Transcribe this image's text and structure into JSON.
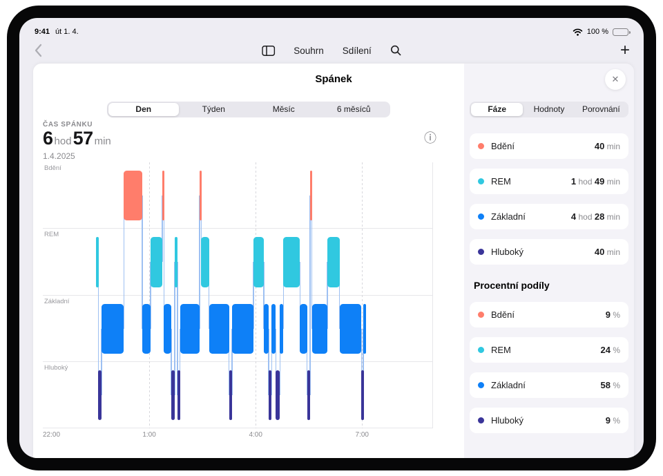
{
  "status_bar": {
    "time": "9:41",
    "date": "út 1. 4.",
    "battery": "100 %"
  },
  "nav": {
    "summary": "Souhrn",
    "sharing": "Sdílení"
  },
  "sheet": {
    "title": "Spánek"
  },
  "main": {
    "range_tabs": {
      "options": [
        "Den",
        "Týden",
        "Měsíc",
        "6 měsíců"
      ],
      "selected": 0
    },
    "metric": {
      "label": "ČAS SPÁNKU",
      "hours": "6",
      "hours_unit": "hod",
      "minutes": "57",
      "minutes_unit": "min",
      "date": "1.4.2025"
    },
    "info_icon": "ⓘ"
  },
  "panel": {
    "tabs": {
      "options": [
        "Fáze",
        "Hodnoty",
        "Porovnání"
      ],
      "selected": 0
    },
    "close_icon": "✕",
    "phases": [
      {
        "name": "Bdění",
        "color": "#FF7D6B",
        "value": [
          {
            "t": "40",
            "b": true
          },
          {
            "t": " min",
            "b": false
          }
        ]
      },
      {
        "name": "REM",
        "color": "#30C8E0",
        "value": [
          {
            "t": "1",
            "b": true
          },
          {
            "t": " hod ",
            "b": false
          },
          {
            "t": "49",
            "b": true
          },
          {
            "t": " min",
            "b": false
          }
        ]
      },
      {
        "name": "Základní",
        "color": "#0E80F7",
        "value": [
          {
            "t": "4",
            "b": true
          },
          {
            "t": " hod ",
            "b": false
          },
          {
            "t": "28",
            "b": true
          },
          {
            "t": " min",
            "b": false
          }
        ]
      },
      {
        "name": "Hluboký",
        "color": "#3A3599",
        "value": [
          {
            "t": "40",
            "b": true
          },
          {
            "t": " min",
            "b": false
          }
        ]
      }
    ],
    "percent_title": "Procentní podíly",
    "percentages": [
      {
        "name": "Bdění",
        "color": "#FF7D6B",
        "value": [
          {
            "t": "9",
            "b": true
          },
          {
            "t": " %",
            "b": false
          }
        ]
      },
      {
        "name": "REM",
        "color": "#30C8E0",
        "value": [
          {
            "t": "24",
            "b": true
          },
          {
            "t": " %",
            "b": false
          }
        ]
      },
      {
        "name": "Základní",
        "color": "#0E80F7",
        "value": [
          {
            "t": "58",
            "b": true
          },
          {
            "t": " %",
            "b": false
          }
        ]
      },
      {
        "name": "Hluboký",
        "color": "#3A3599",
        "value": [
          {
            "t": "9",
            "b": true
          },
          {
            "t": " %",
            "b": false
          }
        ]
      }
    ]
  },
  "chart_data": {
    "type": "hypnogram-timeline",
    "title": "Spánek",
    "date": "1.4.2025",
    "sleep_duration": {
      "hours": 6,
      "minutes": 57
    },
    "x_domain_note": "minutes after 22:00",
    "x_domain": [
      0,
      660
    ],
    "x_ticks": [
      {
        "m": 0,
        "label": "22:00"
      },
      {
        "m": 180,
        "label": "1:00"
      },
      {
        "m": 360,
        "label": "4:00"
      },
      {
        "m": 540,
        "label": "7:00"
      }
    ],
    "lanes": [
      {
        "key": "awake",
        "label": "Bdění",
        "color": "#FF7D6B"
      },
      {
        "key": "rem",
        "label": "REM",
        "color": "#30C8E0"
      },
      {
        "key": "core",
        "label": "Základní",
        "color": "#0E80F7"
      },
      {
        "key": "deep",
        "label": "Hluboký",
        "color": "#3A3599"
      }
    ],
    "stage_totals": {
      "Bdění": "40 min",
      "REM": "1 hod 49 min",
      "Základní": "4 hod 28 min",
      "Hluboký": "40 min"
    },
    "stage_percentages": {
      "Bdění": "9 %",
      "REM": "24 %",
      "Základní": "58 %",
      "Hluboký": "9 %"
    },
    "segments": [
      [
        90,
        4,
        "rem"
      ],
      [
        94,
        5,
        "deep"
      ],
      [
        99,
        38,
        "core"
      ],
      [
        137,
        31,
        "awake"
      ],
      [
        168,
        14,
        "core"
      ],
      [
        182,
        20,
        "rem"
      ],
      [
        202,
        3,
        "awake"
      ],
      [
        205,
        12,
        "core"
      ],
      [
        217,
        6,
        "deep"
      ],
      [
        223,
        5,
        "rem"
      ],
      [
        228,
        4,
        "deep"
      ],
      [
        232,
        33,
        "core"
      ],
      [
        265,
        3,
        "awake"
      ],
      [
        268,
        13,
        "rem"
      ],
      [
        281,
        34,
        "core"
      ],
      [
        315,
        5,
        "deep"
      ],
      [
        320,
        36,
        "core"
      ],
      [
        356,
        18,
        "rem"
      ],
      [
        374,
        8,
        "core"
      ],
      [
        382,
        5,
        "deep"
      ],
      [
        387,
        7,
        "core"
      ],
      [
        394,
        7,
        "deep"
      ],
      [
        401,
        6,
        "core"
      ],
      [
        407,
        28,
        "rem"
      ],
      [
        435,
        12,
        "core"
      ],
      [
        447,
        5,
        "deep"
      ],
      [
        452,
        3,
        "awake"
      ],
      [
        455,
        26,
        "core"
      ],
      [
        481,
        21,
        "rem"
      ],
      [
        502,
        37,
        "core"
      ],
      [
        539,
        3,
        "deep"
      ],
      [
        542,
        5,
        "core"
      ]
    ]
  }
}
